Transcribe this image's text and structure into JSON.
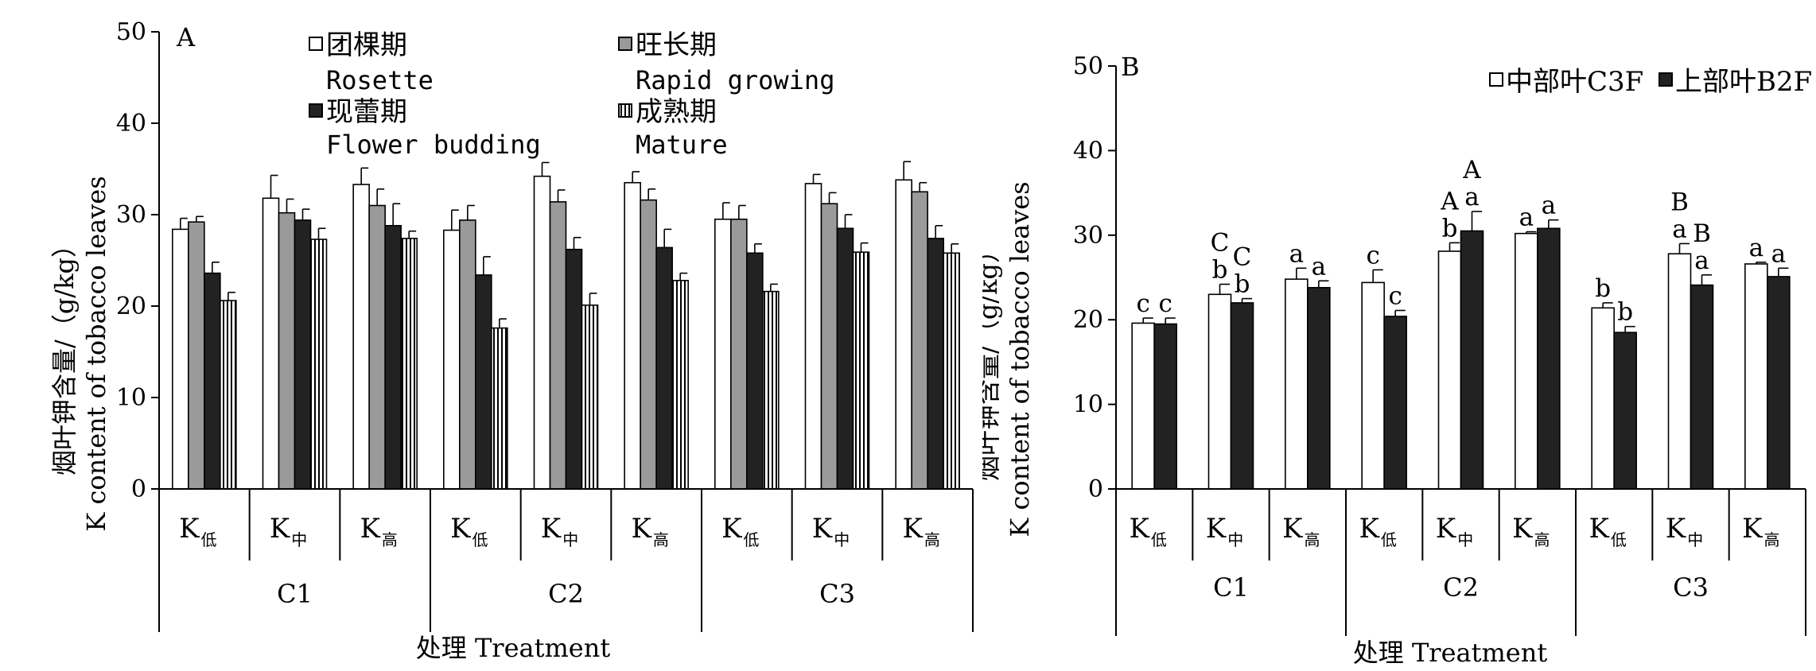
{
  "chart_data": [
    {
      "panel_label": "A",
      "type": "bar",
      "ylabel_cn": "烟叶钾含量/（g/kg）",
      "ylabel_en": "K content of tobacco leaves",
      "xlabel": "处理 Treatment",
      "ylim": [
        0,
        50
      ],
      "yticks": [
        0,
        10,
        20,
        30,
        40,
        50
      ],
      "categories": [
        {
          "main": "K",
          "sub": "低",
          "group": "C1"
        },
        {
          "main": "K",
          "sub": "中",
          "group": "C1"
        },
        {
          "main": "K",
          "sub": "高",
          "group": "C1"
        },
        {
          "main": "K",
          "sub": "低",
          "group": "C2"
        },
        {
          "main": "K",
          "sub": "中",
          "group": "C2"
        },
        {
          "main": "K",
          "sub": "高",
          "group": "C2"
        },
        {
          "main": "K",
          "sub": "低",
          "group": "C3"
        },
        {
          "main": "K",
          "sub": "中",
          "group": "C3"
        },
        {
          "main": "K",
          "sub": "高",
          "group": "C3"
        }
      ],
      "groups": [
        "C1",
        "C2",
        "C3"
      ],
      "series": [
        {
          "name_cn": "团棵期",
          "name_en": "Rosette",
          "fill": "#ffffff",
          "values": [
            28.4,
            31.8,
            33.3,
            28.3,
            34.2,
            33.5,
            29.5,
            33.4,
            33.8
          ],
          "errors": [
            1.2,
            2.5,
            1.8,
            2.2,
            1.5,
            1.2,
            1.8,
            1.0,
            2.0
          ]
        },
        {
          "name_cn": "旺长期",
          "name_en": "Rapid growing",
          "fill": "#9a9a9a",
          "values": [
            29.2,
            30.2,
            31.0,
            29.4,
            31.4,
            31.6,
            29.5,
            31.2,
            32.5
          ],
          "errors": [
            0.6,
            1.5,
            1.8,
            1.6,
            1.3,
            1.2,
            1.5,
            1.2,
            1.0
          ]
        },
        {
          "name_cn": "现蕾期",
          "name_en": "Flower budding",
          "fill": "#222222",
          "values": [
            23.6,
            29.4,
            28.8,
            23.4,
            26.2,
            26.4,
            25.8,
            28.5,
            27.4
          ],
          "errors": [
            1.2,
            1.2,
            2.4,
            2.0,
            1.3,
            2.0,
            1.0,
            1.5,
            1.4
          ]
        },
        {
          "name_cn": "成熟期",
          "name_en": "Mature",
          "fill": "stripes",
          "values": [
            20.6,
            27.3,
            27.4,
            17.6,
            20.1,
            22.8,
            21.6,
            25.9,
            25.8
          ],
          "errors": [
            0.9,
            1.2,
            0.8,
            1.0,
            1.3,
            0.8,
            0.8,
            1.0,
            1.0
          ]
        }
      ],
      "legend_position": "top"
    },
    {
      "panel_label": "B",
      "type": "bar",
      "ylabel_cn": "烟叶钾含量/（g/kg）",
      "ylabel_en": "K content of tobacco leaves",
      "xlabel": "处理 Treatment",
      "ylim": [
        0,
        50
      ],
      "yticks": [
        0,
        10,
        20,
        30,
        40,
        50
      ],
      "categories": [
        {
          "main": "K",
          "sub": "低",
          "group": "C1"
        },
        {
          "main": "K",
          "sub": "中",
          "group": "C1"
        },
        {
          "main": "K",
          "sub": "高",
          "group": "C1"
        },
        {
          "main": "K",
          "sub": "低",
          "group": "C2"
        },
        {
          "main": "K",
          "sub": "中",
          "group": "C2"
        },
        {
          "main": "K",
          "sub": "高",
          "group": "C2"
        },
        {
          "main": "K",
          "sub": "低",
          "group": "C3"
        },
        {
          "main": "K",
          "sub": "中",
          "group": "C3"
        },
        {
          "main": "K",
          "sub": "高",
          "group": "C3"
        }
      ],
      "groups": [
        "C1",
        "C2",
        "C3"
      ],
      "series": [
        {
          "name": "中部叶C3F",
          "fill": "#ffffff",
          "values": [
            19.6,
            23.0,
            24.8,
            24.4,
            28.1,
            30.2,
            21.4,
            27.8,
            26.6
          ],
          "errors": [
            0.6,
            1.2,
            1.3,
            1.5,
            1.0,
            0.2,
            0.6,
            1.2,
            0.2
          ],
          "labels": [
            "c",
            "C\nb",
            "a",
            "c",
            "A\nb",
            "a",
            "b",
            "B\na",
            "a"
          ]
        },
        {
          "name": "上部叶B2F",
          "fill": "#222222",
          "values": [
            19.5,
            22.0,
            23.8,
            20.4,
            30.5,
            30.8,
            18.5,
            24.1,
            25.1
          ],
          "errors": [
            0.7,
            0.5,
            0.8,
            0.7,
            2.3,
            1.0,
            0.7,
            1.2,
            1.0
          ],
          "labels": [
            "c",
            "C\nb",
            "a",
            "c",
            "A\na",
            "a",
            "b",
            "B\na",
            "a"
          ]
        }
      ],
      "legend_position": "top-right"
    }
  ]
}
